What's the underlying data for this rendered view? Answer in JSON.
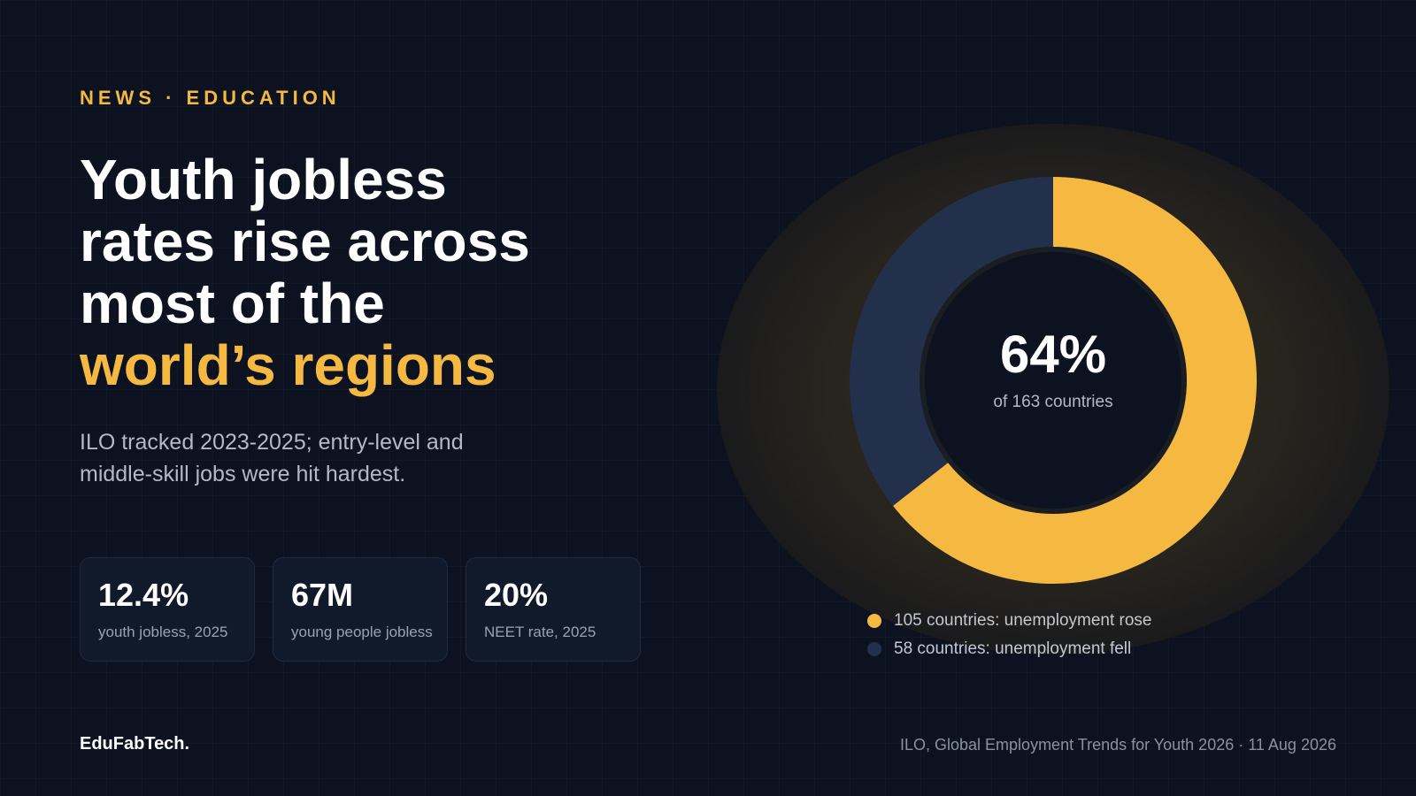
{
  "kicker": "NEWS · EDUCATION",
  "headline": {
    "line1": "Youth jobless",
    "line2": "rates rise across",
    "line3": "most of the",
    "accent": "world’s regions"
  },
  "subtitle": "ILO tracked 2023-2025; entry-level and middle-skill jobs were hit hardest.",
  "stats": [
    {
      "value": "12.4%",
      "label": "youth jobless, 2025"
    },
    {
      "value": "67M",
      "label": "young people jobless"
    },
    {
      "value": "20%",
      "label": "NEET rate, 2025"
    }
  ],
  "brand": "EduFabTech.",
  "source": "ILO, Global Employment Trends for Youth 2026 · 11 Aug 2026",
  "colors": {
    "accent": "#f5b942",
    "secondary": "#23304b",
    "background": "#0c1220"
  },
  "chart_data": {
    "type": "pie",
    "title": "",
    "center_value": "64%",
    "center_label": "of 163 countries",
    "series": [
      {
        "name": "105 countries: unemployment rose",
        "value": 105,
        "color": "#f5b942"
      },
      {
        "name": "58 countries: unemployment fell",
        "value": 58,
        "color": "#23304b"
      }
    ],
    "total": 163,
    "legend_position": "bottom"
  }
}
